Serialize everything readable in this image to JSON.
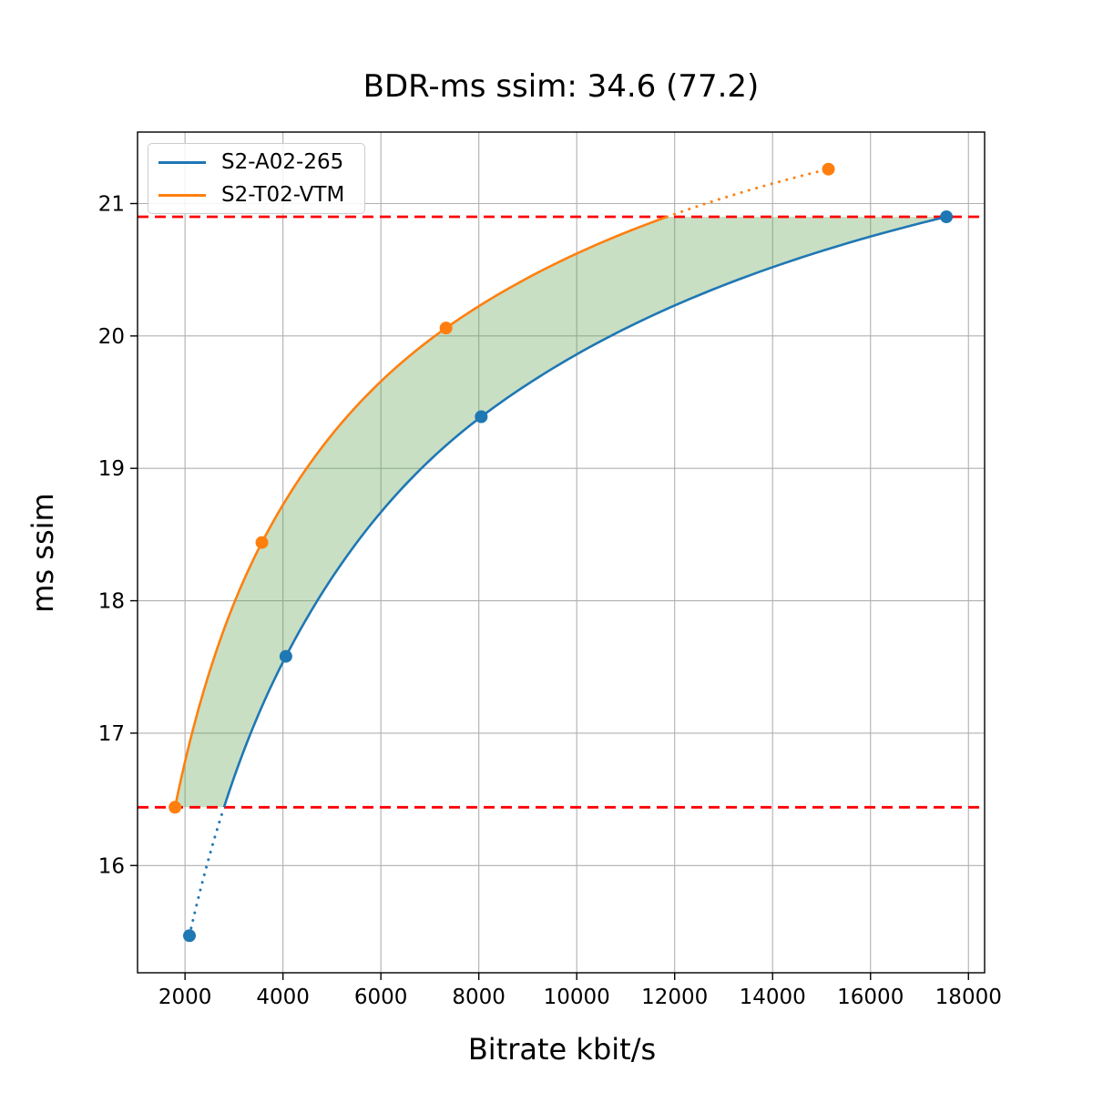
{
  "title": "BDR-ms ssim: 34.6 (77.2)",
  "chart_data": {
    "type": "line",
    "title": "BDR-ms ssim: 34.6 (77.2)",
    "xlabel": "Bitrate kbit/s",
    "ylabel": "ms ssim",
    "xlim": [
      1030,
      18330
    ],
    "ylim": [
      15.19,
      21.54
    ],
    "x_ticks": [
      2000,
      4000,
      6000,
      8000,
      10000,
      12000,
      14000,
      16000,
      18000
    ],
    "y_ticks": [
      16,
      17,
      18,
      19,
      20,
      21
    ],
    "grid": true,
    "grid_color": "#b0b0b0",
    "legend_position": "upper left",
    "bdr_value": 34.6,
    "bdr_value_secondary": 77.2,
    "series": [
      {
        "name": "S2-A02-265",
        "color": "#1f77b4",
        "points": [
          [
            2090,
            15.47
          ],
          [
            4060,
            17.58
          ],
          [
            8050,
            19.39
          ],
          [
            17550,
            20.9
          ]
        ],
        "dotted_segment": "below-overlap"
      },
      {
        "name": "S2-T02-VTM",
        "color": "#ff7f0e",
        "points": [
          [
            1795,
            16.44
          ],
          [
            3570,
            18.44
          ],
          [
            7330,
            20.06
          ],
          [
            15140,
            21.26
          ]
        ],
        "dotted_segment": "above-overlap"
      }
    ],
    "overlap_interval": {
      "low": 16.44,
      "high": 20.9,
      "line_color": "#ff0000",
      "line_style": "dashed"
    },
    "shaded_region_color": "rgba(96,164,85,0.35)"
  }
}
